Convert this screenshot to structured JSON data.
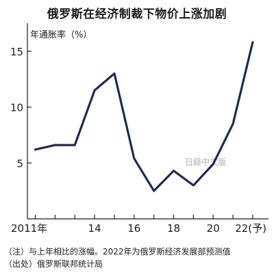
{
  "chart_data": {
    "type": "line",
    "title": "俄罗斯在经济制裁下物价上涨加剧",
    "ylabel": "年通胀率（%）",
    "x": [
      2011,
      2012,
      2013,
      2014,
      2015,
      2016,
      2017,
      2018,
      2019,
      2020,
      2021,
      2022
    ],
    "x_tick_values": [
      2011,
      2014,
      2016,
      2018,
      2020,
      2022
    ],
    "x_tick_labels": [
      "2011年",
      "14",
      "16",
      "18",
      "20",
      "22(予)"
    ],
    "series": [
      {
        "values": [
          6.2,
          6.6,
          6.6,
          11.5,
          13.0,
          5.4,
          2.5,
          4.3,
          3.0,
          4.9,
          8.5,
          15.8
        ]
      }
    ],
    "ylim": [
      0,
      17.5
    ],
    "y_ticks": [
      5,
      10,
      15
    ],
    "line_color": "#1c2b52",
    "grid": false
  },
  "watermark": "日経中文版",
  "notes": {
    "note1": "（注）与上年相比的涨幅。2022年为俄罗斯经济发展部预测值",
    "note2": "（出处）俄罗斯联邦统计局"
  }
}
